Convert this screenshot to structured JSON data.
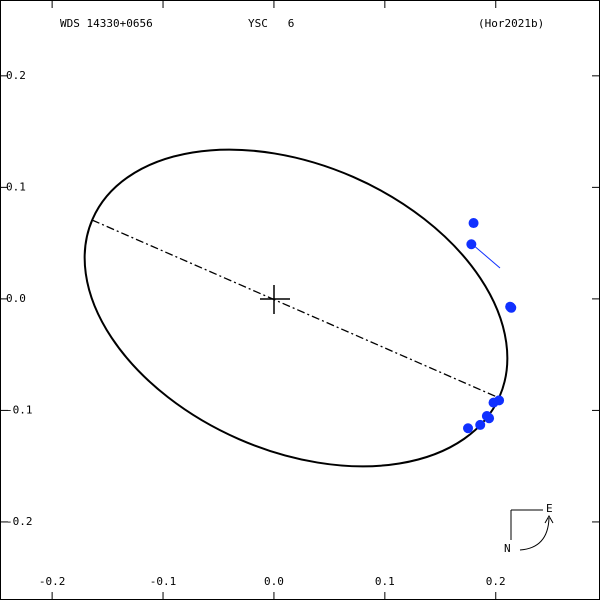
{
  "chart_data": {
    "type": "scatter",
    "title": "WDS 14330+0656",
    "subtitle": "YSC   6",
    "reference": "(Hor2021b)",
    "compass": {
      "east": "E",
      "north": "N"
    },
    "x": [
      0.18,
      0.178,
      0.214,
      0.213,
      0.203,
      0.198,
      0.194,
      0.192,
      0.186,
      0.175
    ],
    "values": [
      0.068,
      0.049,
      -0.008,
      -0.007,
      -0.091,
      -0.093,
      -0.107,
      -0.105,
      -0.113,
      -0.116
    ],
    "color": "#1030ff",
    "xlim": [
      -0.247,
      0.294
    ],
    "ylim": [
      -0.27,
      0.268
    ],
    "xticks": [
      -0.2,
      -0.1,
      {
        "value": 0,
        "label": "0.0"
      },
      0.1,
      0.2
    ],
    "yticks": [
      -0.2,
      -0.1,
      {
        "value": 0,
        "label": "0.0"
      },
      0.1,
      0.2
    ]
  }
}
